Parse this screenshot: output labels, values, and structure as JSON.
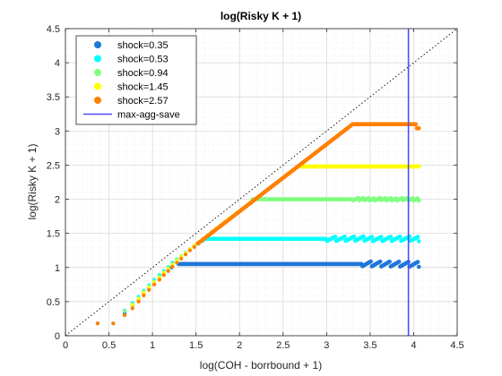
{
  "chart_data": {
    "type": "scatter",
    "title": "log(Risky K + 1)",
    "xlabel": "log(COH - borrbound + 1)",
    "ylabel": "log(Risky K + 1)",
    "xlim": [
      0,
      4.5
    ],
    "ylim": [
      0,
      4.5
    ],
    "xticks": [
      "0",
      "0.5",
      "1",
      "1.5",
      "2",
      "2.5",
      "3",
      "3.5",
      "4",
      "4.5"
    ],
    "yticks": [
      "0",
      "0.5",
      "1",
      "1.5",
      "2",
      "2.5",
      "3",
      "3.5",
      "4",
      "4.5"
    ],
    "grid": true,
    "legend_position": "top-left",
    "reference_line": {
      "type": "diagonal",
      "style": "dotted",
      "color": "#000000"
    },
    "vertical_line": {
      "name": "max-agg-save",
      "x": 3.94,
      "color": "#4d4dff"
    },
    "series": [
      {
        "name": "shock=0.35",
        "color": "#1f77d9",
        "diagonal_points": [
          [
            0.37,
            0.18
          ],
          [
            0.55,
            0.18
          ],
          [
            0.68,
            0.33
          ],
          [
            0.77,
            0.44
          ],
          [
            0.84,
            0.53
          ],
          [
            0.9,
            0.62
          ],
          [
            0.96,
            0.69
          ],
          [
            1.02,
            0.77
          ],
          [
            1.08,
            0.83
          ],
          [
            1.13,
            0.89
          ],
          [
            1.18,
            0.95
          ],
          [
            1.22,
            1.0
          ]
        ],
        "plateau": {
          "x_start": 1.3,
          "x_end": 4.06,
          "y": 1.05,
          "sawtooth_start": 3.4,
          "amplitude": 0.08,
          "teeth": 6
        }
      },
      {
        "name": "shock=0.53",
        "color": "#00ffff",
        "diagonal_points": [
          [
            0.55,
            0.18
          ],
          [
            0.68,
            0.37
          ],
          [
            0.77,
            0.48
          ],
          [
            0.84,
            0.57
          ],
          [
            0.9,
            0.66
          ],
          [
            0.96,
            0.74
          ],
          [
            1.02,
            0.82
          ],
          [
            1.08,
            0.89
          ],
          [
            1.13,
            0.95
          ],
          [
            1.18,
            1.01
          ],
          [
            1.23,
            1.07
          ],
          [
            1.28,
            1.12
          ],
          [
            1.33,
            1.17
          ],
          [
            1.38,
            1.22
          ],
          [
            1.43,
            1.27
          ],
          [
            1.48,
            1.31
          ],
          [
            1.53,
            1.35
          ],
          [
            1.58,
            1.39
          ]
        ],
        "plateau": {
          "x_start": 1.6,
          "x_end": 4.06,
          "y": 1.42,
          "sawtooth_start": 3.0,
          "amplitude": 0.07,
          "teeth": 10
        }
      },
      {
        "name": "shock=0.94",
        "color": "#7fff7f",
        "diagonal_points": [
          [
            0.68,
            0.36
          ],
          [
            0.77,
            0.46
          ],
          [
            0.84,
            0.55
          ],
          [
            0.9,
            0.64
          ],
          [
            0.96,
            0.72
          ],
          [
            1.02,
            0.8
          ],
          [
            1.08,
            0.87
          ],
          [
            1.13,
            0.93
          ],
          [
            1.18,
            1.0
          ],
          [
            1.23,
            1.05
          ],
          [
            1.28,
            1.11
          ],
          [
            1.33,
            1.17
          ],
          [
            1.38,
            1.22
          ],
          [
            1.43,
            1.27
          ],
          [
            1.48,
            1.32
          ],
          [
            1.53,
            1.37
          ],
          [
            1.58,
            1.42
          ],
          [
            1.63,
            1.47
          ],
          [
            1.68,
            1.52
          ],
          [
            1.73,
            1.57
          ],
          [
            1.78,
            1.61
          ],
          [
            1.83,
            1.66
          ],
          [
            1.88,
            1.71
          ],
          [
            1.93,
            1.75
          ],
          [
            1.98,
            1.8
          ],
          [
            2.03,
            1.85
          ],
          [
            2.08,
            1.89
          ],
          [
            2.13,
            1.94
          ]
        ],
        "plateau": {
          "x_start": 2.15,
          "x_end": 4.06,
          "y": 2.0,
          "sawtooth_start": 3.3,
          "amplitude": 0.04,
          "teeth": 12
        }
      },
      {
        "name": "shock=1.45",
        "color": "#ffff00",
        "diagonal_points": [
          [
            0.77,
            0.45
          ],
          [
            0.84,
            0.54
          ],
          [
            0.9,
            0.63
          ],
          [
            0.96,
            0.71
          ],
          [
            1.02,
            0.78
          ],
          [
            1.08,
            0.85
          ],
          [
            1.13,
            0.92
          ],
          [
            1.18,
            0.98
          ],
          [
            1.23,
            1.04
          ],
          [
            1.28,
            1.1
          ],
          [
            1.33,
            1.16
          ],
          [
            1.38,
            1.21
          ],
          [
            1.43,
            1.27
          ],
          [
            1.48,
            1.32
          ],
          [
            1.53,
            1.37
          ],
          [
            1.58,
            1.42
          ],
          [
            1.63,
            1.47
          ],
          [
            1.68,
            1.52
          ],
          [
            1.73,
            1.57
          ],
          [
            1.78,
            1.62
          ],
          [
            1.83,
            1.67
          ],
          [
            1.88,
            1.72
          ],
          [
            1.93,
            1.76
          ],
          [
            1.98,
            1.81
          ],
          [
            2.03,
            1.86
          ],
          [
            2.08,
            1.91
          ],
          [
            2.13,
            1.96
          ],
          [
            2.18,
            2.0
          ],
          [
            2.23,
            2.05
          ],
          [
            2.28,
            2.1
          ],
          [
            2.33,
            2.15
          ],
          [
            2.38,
            2.19
          ],
          [
            2.43,
            2.24
          ],
          [
            2.48,
            2.29
          ],
          [
            2.53,
            2.34
          ],
          [
            2.58,
            2.38
          ],
          [
            2.63,
            2.43
          ]
        ],
        "plateau": {
          "x_start": 2.68,
          "x_end": 4.06,
          "y": 2.48,
          "sawtooth_start": 4.1,
          "amplitude": 0.0,
          "teeth": 0
        }
      },
      {
        "name": "shock=2.57",
        "color": "#ff7f00",
        "diagonal_points": [
          [
            0.37,
            0.18
          ],
          [
            0.55,
            0.18
          ],
          [
            0.68,
            0.3
          ],
          [
            0.77,
            0.4
          ],
          [
            0.84,
            0.5
          ],
          [
            0.9,
            0.59
          ],
          [
            0.96,
            0.67
          ],
          [
            1.02,
            0.75
          ],
          [
            1.08,
            0.82
          ],
          [
            1.13,
            0.89
          ],
          [
            1.18,
            0.95
          ],
          [
            1.23,
            1.01
          ],
          [
            1.28,
            1.07
          ],
          [
            1.33,
            1.13
          ],
          [
            1.38,
            1.19
          ],
          [
            1.43,
            1.25
          ],
          [
            1.48,
            1.3
          ]
        ],
        "ramp": {
          "x_start": 1.52,
          "x_end": 3.3,
          "y_start": 1.35,
          "y_end": 3.1
        },
        "plateau": {
          "x_start": 3.3,
          "x_end": 4.06,
          "y": 3.1,
          "sawtooth_start": 4.1,
          "amplitude": 0.0,
          "teeth": 0,
          "end_drop": 0.06
        }
      }
    ]
  }
}
